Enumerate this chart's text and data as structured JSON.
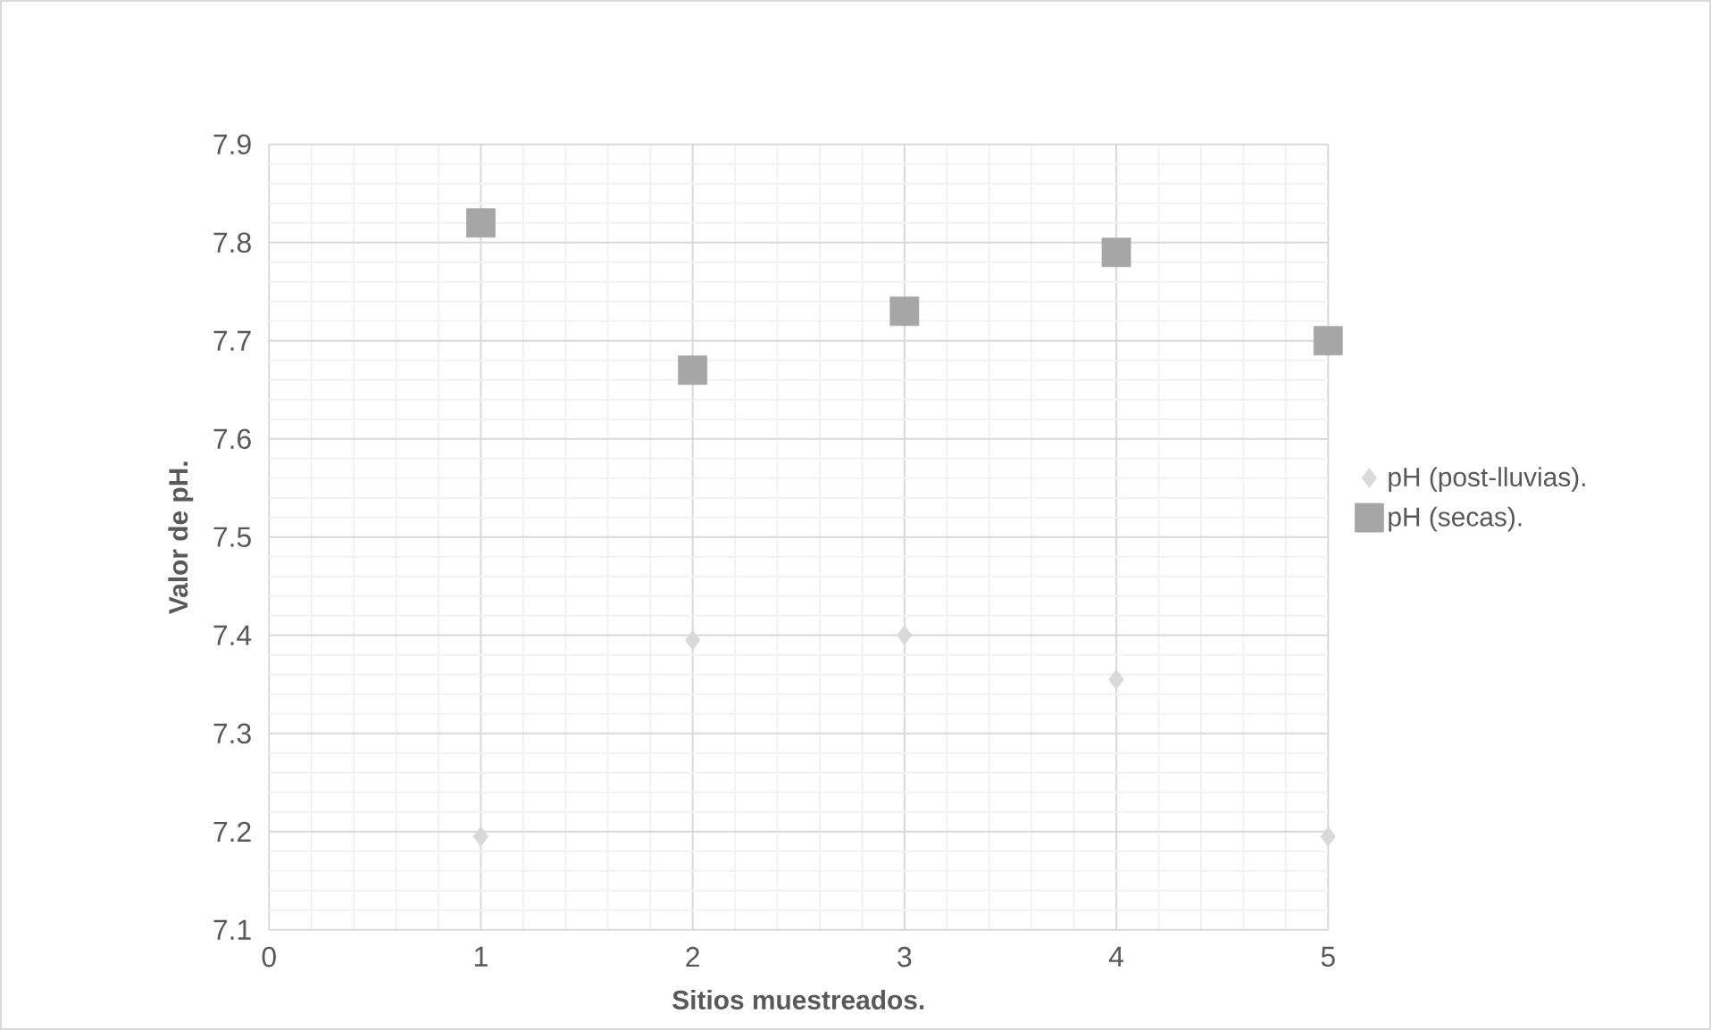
{
  "chart_data": {
    "type": "scatter",
    "xlabel": "Sitios muestreados.",
    "ylabel": "Valor de pH.",
    "xlim": [
      0,
      5
    ],
    "xticks": [
      0,
      1,
      2,
      3,
      4,
      5
    ],
    "ylim": [
      7.1,
      7.9
    ],
    "yticks": [
      7.1,
      7.2,
      7.3,
      7.4,
      7.5,
      7.6,
      7.7,
      7.8,
      7.9
    ],
    "grid": true,
    "legend": "right",
    "series": [
      {
        "name": "pH (post-lluvias).",
        "color": "#d9d9d9",
        "marker": "diamond",
        "x": [
          1,
          2,
          3,
          4,
          5
        ],
        "values": [
          7.195,
          7.395,
          7.4,
          7.355,
          7.195
        ]
      },
      {
        "name": "pH (secas).",
        "color": "#a6a6a6",
        "marker": "square",
        "x": [
          1,
          2,
          3,
          4,
          5
        ],
        "values": [
          7.82,
          7.67,
          7.73,
          7.79,
          7.7
        ]
      }
    ]
  }
}
